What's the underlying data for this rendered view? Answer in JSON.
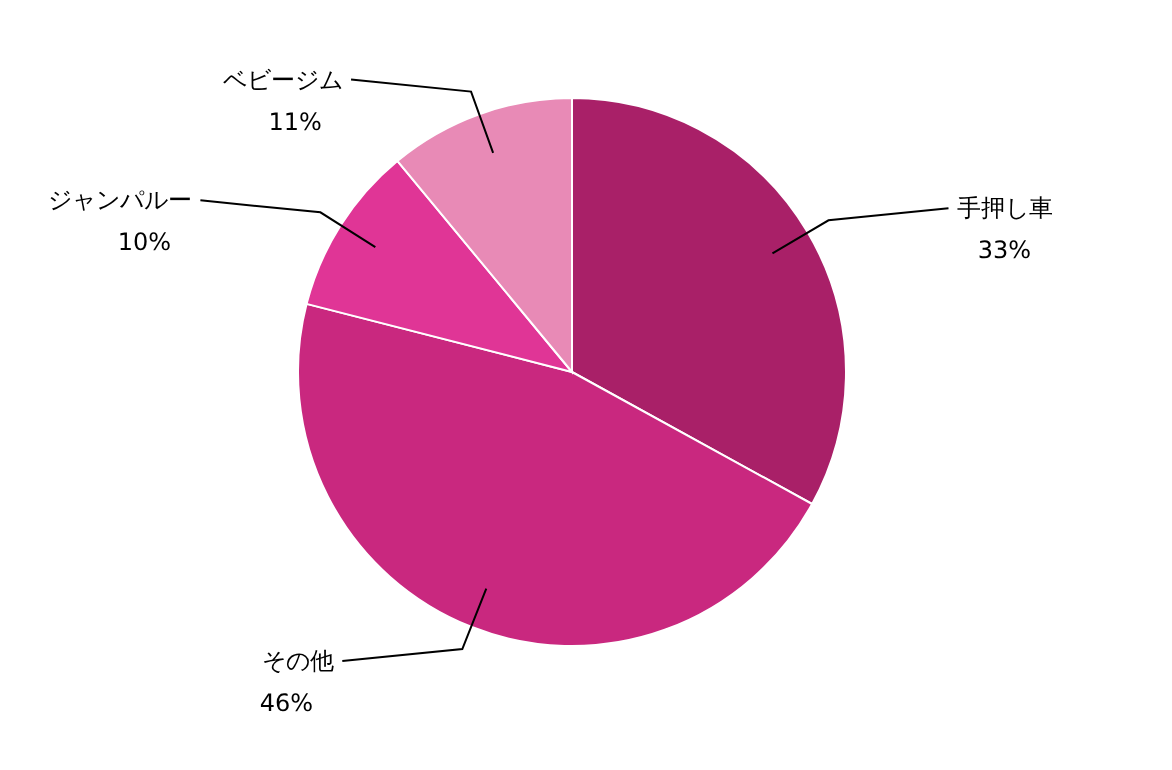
{
  "chart_data": {
    "type": "pie",
    "categories": [
      "手押し車",
      "その他",
      "ジャンパルー",
      "ベビージム"
    ],
    "values": [
      33,
      46,
      10,
      11
    ],
    "colors": [
      "#a92068",
      "#c9287f",
      "#e03596",
      "#e88ab6"
    ],
    "value_labels": [
      "33%",
      "46%",
      "10%",
      "11%"
    ]
  }
}
